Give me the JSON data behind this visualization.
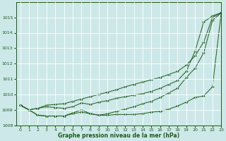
{
  "title": "Graphe pression niveau de la mer (hPa)",
  "bg_color": "#cde8e8",
  "grid_color": "#ffffff",
  "line_color": "#1a5c1a",
  "xlim": [
    -0.5,
    23
  ],
  "ylim": [
    1008,
    1016
  ],
  "yticks": [
    1008,
    1009,
    1010,
    1011,
    1012,
    1013,
    1014,
    1015
  ],
  "xticks": [
    0,
    1,
    2,
    3,
    4,
    5,
    6,
    7,
    8,
    9,
    10,
    11,
    12,
    13,
    14,
    15,
    16,
    17,
    18,
    19,
    20,
    21,
    22,
    23
  ],
  "series": [
    {
      "x": [
        0,
        1,
        2,
        3,
        4,
        5,
        6,
        7,
        8,
        9,
        10,
        11,
        12,
        13,
        14,
        15,
        16,
        17,
        18,
        19,
        20,
        21,
        22,
        23
      ],
      "y": [
        1009.3,
        1009.0,
        1009.1,
        1009.2,
        1009.15,
        1009.1,
        1009.2,
        1009.45,
        1009.35,
        1009.5,
        1009.6,
        1009.75,
        1009.85,
        1009.95,
        1010.05,
        1010.2,
        1010.4,
        1010.65,
        1010.9,
        1011.5,
        1012.8,
        1014.7,
        1015.1,
        1015.3
      ]
    },
    {
      "x": [
        0,
        1,
        2,
        3,
        4,
        5,
        6,
        7,
        8,
        9,
        10,
        11,
        12,
        13,
        14,
        15,
        16,
        17,
        18,
        19,
        20,
        21,
        22,
        23
      ],
      "y": [
        1009.3,
        1009.0,
        1008.65,
        1008.6,
        1008.6,
        1008.6,
        1008.75,
        1008.85,
        1008.75,
        1008.65,
        1008.65,
        1008.7,
        1008.7,
        1008.7,
        1008.75,
        1008.85,
        1008.9,
        1009.05,
        1009.25,
        1009.5,
        1009.8,
        1009.9,
        1010.5,
        1015.3
      ]
    },
    {
      "x": [
        0,
        1,
        2,
        3,
        4,
        5,
        6,
        7,
        8,
        9,
        10,
        11,
        12,
        13,
        14,
        15,
        16,
        17,
        18,
        19,
        20,
        21,
        22,
        23
      ],
      "y": [
        1009.3,
        1009.0,
        1008.65,
        1008.6,
        1008.6,
        1008.6,
        1008.8,
        1009.0,
        1008.75,
        1008.65,
        1008.75,
        1008.9,
        1009.05,
        1009.2,
        1009.4,
        1009.55,
        1009.8,
        1010.1,
        1010.4,
        1011.1,
        1011.7,
        1012.7,
        1014.8,
        1015.3
      ]
    },
    {
      "x": [
        0,
        1,
        2,
        3,
        4,
        5,
        6,
        7,
        8,
        9,
        10,
        11,
        12,
        13,
        14,
        15,
        16,
        17,
        18,
        19,
        20,
        21,
        22,
        23
      ],
      "y": [
        1009.3,
        1009.0,
        1009.1,
        1009.3,
        1009.35,
        1009.4,
        1009.55,
        1009.7,
        1009.85,
        1010.0,
        1010.15,
        1010.3,
        1010.5,
        1010.65,
        1010.8,
        1010.95,
        1011.1,
        1011.3,
        1011.5,
        1011.9,
        1012.5,
        1013.4,
        1015.0,
        1015.3
      ]
    }
  ]
}
